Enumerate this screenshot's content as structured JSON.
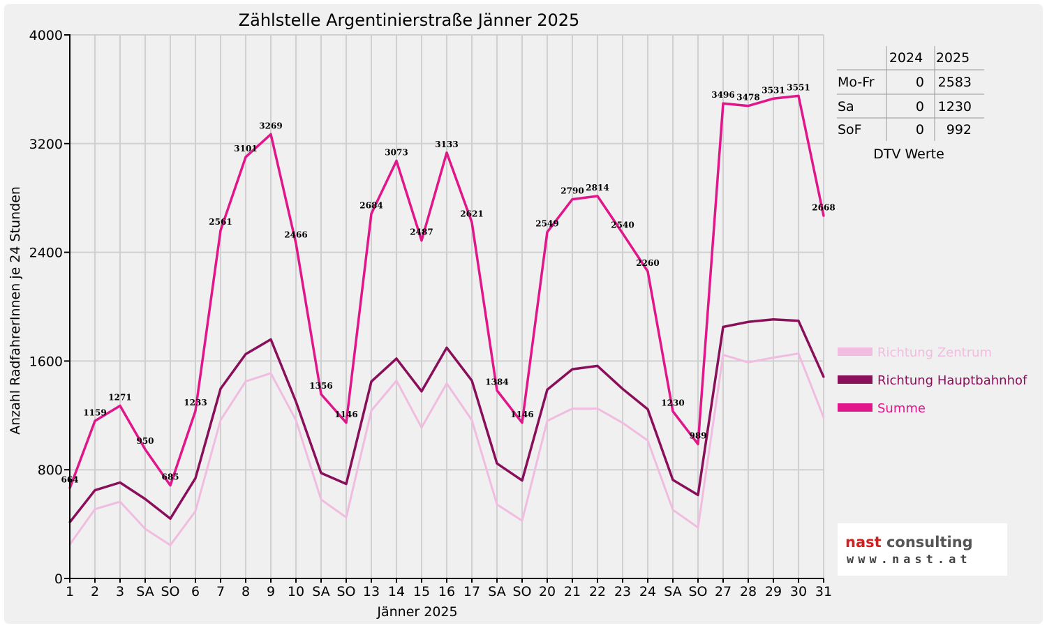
{
  "chart_data": {
    "type": "line",
    "title": "Zählstelle Argentinierstraße Jänner 2025",
    "xlabel": "Jänner 2025",
    "ylabel": "Anzahl RadfahrerInnen je 24 Stunden",
    "ylim": [
      0,
      4000
    ],
    "yticks": [
      "0",
      "800",
      "1600",
      "2400",
      "3200",
      "4000"
    ],
    "grid": true,
    "legend_position": "right",
    "categories": [
      "1",
      "2",
      "3",
      "SA",
      "SO",
      "6",
      "7",
      "8",
      "9",
      "10",
      "SA",
      "SO",
      "13",
      "14",
      "15",
      "16",
      "17",
      "SA",
      "SO",
      "20",
      "21",
      "22",
      "23",
      "24",
      "SA",
      "SO",
      "27",
      "28",
      "29",
      "30",
      "31"
    ],
    "weekend_color": "#ff0000",
    "series": [
      {
        "name": "Richtung Zentrum",
        "color": "#f0bce0",
        "values": [
          250,
          510,
          565,
          365,
          245,
          495,
          1165,
          1450,
          1510,
          1165,
          580,
          450,
          1235,
          1455,
          1110,
          1435,
          1165,
          545,
          425,
          1160,
          1250,
          1250,
          1145,
          1015,
          505,
          375,
          1645,
          1590,
          1625,
          1655,
          1185
        ]
      },
      {
        "name": "Richtung Hauptbahnhof",
        "color": "#8a0f5a",
        "values": [
          414,
          649,
          706,
          585,
          440,
          738,
          1396,
          1651,
          1759,
          1301,
          776,
          696,
          1449,
          1618,
          1377,
          1698,
          1456,
          846,
          721,
          1389,
          1540,
          1564,
          1395,
          1245,
          725,
          614,
          1851,
          1888,
          1906,
          1896,
          1483
        ]
      },
      {
        "name": "Summe",
        "color": "#e0168a",
        "values": [
          664,
          1159,
          1271,
          950,
          685,
          1233,
          2561,
          3101,
          3269,
          2466,
          1356,
          1146,
          2684,
          3073,
          2487,
          3133,
          2621,
          1384,
          1146,
          2549,
          2790,
          2814,
          2540,
          2260,
          1230,
          989,
          3496,
          3478,
          3531,
          3551,
          2668
        ]
      }
    ],
    "data_labels": [
      "664",
      "1159",
      "1271",
      "950",
      "685",
      "1233",
      "2561",
      "3101",
      "3269",
      "2466",
      "1356",
      "1146",
      "2684",
      "3073",
      "2487",
      "3133",
      "2621",
      "1384",
      "1146",
      "2549",
      "2790",
      "2814",
      "2540",
      "2260",
      "1230",
      "989",
      "3496",
      "3478",
      "3531",
      "3551",
      "2668"
    ]
  },
  "dtv_table": {
    "caption": "DTV Werte",
    "headers": [
      "",
      "2024",
      "2025"
    ],
    "rows": [
      [
        "Mo-Fr",
        "0",
        "2583"
      ],
      [
        "Sa",
        "0",
        "1230"
      ],
      [
        "SoF",
        "0",
        "992"
      ]
    ]
  },
  "logo": {
    "word1": "nast",
    "word2": "consulting",
    "url": "www.nast.at",
    "word1_color": "#d42020",
    "word2_color": "#555555"
  }
}
